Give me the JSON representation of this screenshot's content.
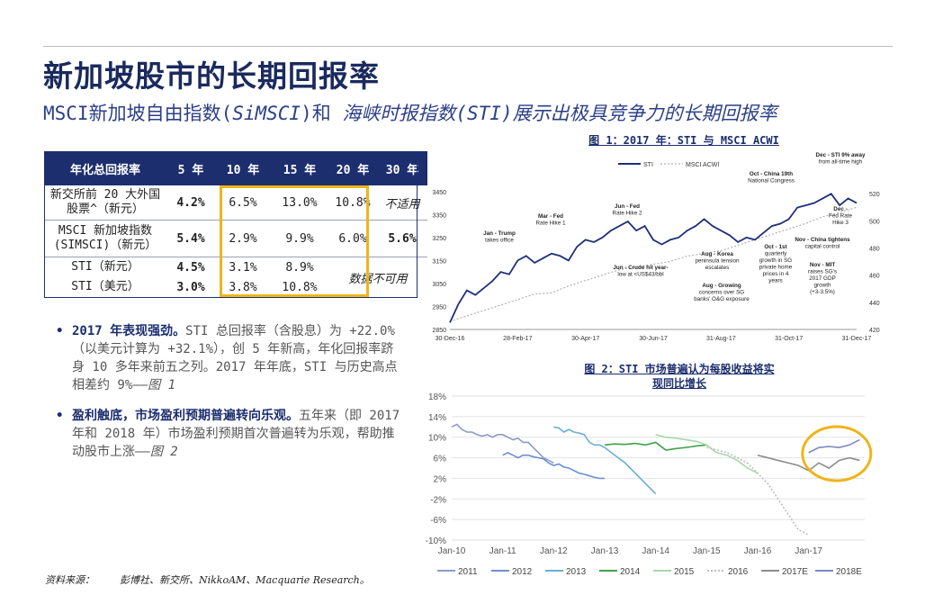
{
  "page": {
    "title": "新加坡股市的长期回报率",
    "subtitle_parts": [
      "MSCI新加坡自由指数(",
      "SiMSCI",
      ")和 ",
      "海峡时报指数(STI)展示出极具竞争力的长期回报率"
    ]
  },
  "table": {
    "headers": [
      "年化总回报率",
      "5 年",
      "10 年",
      "15 年",
      "20 年",
      "30 年"
    ],
    "rows": [
      {
        "label": "新交所前 20 大外国股票^（新元）",
        "label_lines": [
          "新交所前 20 大外国",
          "股票^（新元）"
        ],
        "values": [
          "4.2%",
          "6.5%",
          "13.0%",
          "10.8%",
          "不适用"
        ]
      },
      {
        "label": "MSCI 新加坡指数 (SIMSCI)（新元）",
        "label_lines": [
          "MSCI 新加坡指数",
          "(SIMSCI)（新元）"
        ],
        "values": [
          "5.4%",
          "2.9%",
          "9.9%",
          "6.0%",
          "5.6%"
        ]
      },
      {
        "label": "STI（新元）",
        "values": [
          "4.5%",
          "3.1%",
          "8.9%"
        ]
      },
      {
        "label": "STI（美元）",
        "values": [
          "3.0%",
          "3.8%",
          "10.8%"
        ]
      }
    ],
    "na_note": "数据不可用"
  },
  "bullets": [
    {
      "lead": "2017 年表现强劲。",
      "text": "STI 总回报率（含股息）为 +22.0%（以美元计算为 +32.1%），创 5 年新高，年化回报率跻身 10 多年来前五之列。2017 年年底，STI 与历史高点相差约 9%——",
      "ref": "图 1"
    },
    {
      "lead": "盈利触底，市场盈利预期普遍转向乐观。",
      "text": "五年来（即 2017 年和 2018 年）市场盈利预期首次普遍转为乐观，帮助推动股市上涨——",
      "ref": "图 2"
    }
  ],
  "source": {
    "label": "资料来源：",
    "text": "彭博社、新交所、NikkoAM、Macquarie Research。"
  },
  "colors": {
    "navy": "#1c2e6e",
    "gold": "#f0b419",
    "sti_line": "#1f2f7a",
    "acwi_line": "#b0b0b0"
  },
  "chart_data": [
    {
      "type": "line",
      "title": "图 1：2017 年：STI 与 MSCI ACWI",
      "legend": [
        "STI",
        "MSCI ACWI"
      ],
      "x_ticks": [
        "30-Dec-16",
        "28-Feb-17",
        "30-Apr-17",
        "30-Jun-17",
        "31-Aug-17",
        "31-Oct-17",
        "31-Dec-17"
      ],
      "ylim_left": [
        2850,
        3500
      ],
      "yticks_left": [
        2850,
        2950,
        3050,
        3150,
        3250,
        3350,
        3450
      ],
      "ylim_right": [
        420,
        530
      ],
      "yticks_right": [
        420,
        440,
        460,
        480,
        500,
        520
      ],
      "series": [
        {
          "name": "STI",
          "axis": "left",
          "x_month": [
            0,
            0.25,
            0.5,
            0.75,
            1,
            1.25,
            1.5,
            1.75,
            2,
            2.25,
            2.5,
            2.75,
            3,
            3.25,
            3.5,
            3.75,
            4,
            4.25,
            4.5,
            4.75,
            5,
            5.25,
            5.5,
            5.75,
            6,
            6.25,
            6.5,
            6.75,
            7,
            7.25,
            7.5,
            7.75,
            8,
            8.25,
            8.5,
            8.75,
            9,
            9.25,
            9.5,
            9.75,
            10,
            10.25,
            10.5,
            10.75,
            11,
            11.25,
            11.5,
            11.75,
            12
          ],
          "values": [
            2880,
            2960,
            3020,
            3000,
            3030,
            3060,
            3100,
            3090,
            3150,
            3170,
            3140,
            3160,
            3180,
            3170,
            3150,
            3210,
            3240,
            3230,
            3250,
            3280,
            3300,
            3320,
            3280,
            3300,
            3240,
            3220,
            3240,
            3250,
            3280,
            3300,
            3330,
            3300,
            3280,
            3260,
            3230,
            3250,
            3240,
            3270,
            3300,
            3310,
            3330,
            3380,
            3390,
            3400,
            3420,
            3440,
            3390,
            3420,
            3400
          ]
        },
        {
          "name": "MSCI ACWI",
          "axis": "right",
          "x_month": [
            0,
            0.5,
            1,
            1.5,
            2,
            2.5,
            3,
            3.5,
            4,
            4.5,
            5,
            5.5,
            6,
            6.5,
            7,
            7.5,
            8,
            8.5,
            9,
            9.5,
            10,
            10.5,
            11,
            11.5,
            12
          ],
          "values": [
            426,
            430,
            434,
            438,
            442,
            446,
            447,
            452,
            456,
            460,
            464,
            466,
            468,
            470,
            474,
            476,
            478,
            482,
            486,
            490,
            494,
            498,
            503,
            506,
            510
          ]
        }
      ],
      "annotations": [
        {
          "text": "Jan - Trump takes office",
          "lines": [
            "Jan - Trump",
            "takes office"
          ]
        },
        {
          "text": "Mar - Fed Rate Hike 1",
          "lines": [
            "Mar - Fed",
            "Rate Hike 1"
          ]
        },
        {
          "text": "Jun - Fed Rate Hike 2",
          "lines": [
            "Jun - Fed",
            "Rate Hike 2"
          ]
        },
        {
          "text": "Jun - Crude hit year-low at <US$43/bbl",
          "lines": [
            "Jun - Crude hit year-",
            "low at <US$43/bbl"
          ]
        },
        {
          "text": "Aug - Korea peninsula tension escalates",
          "lines": [
            "Aug - Korea",
            "peninsula tension",
            "escalates"
          ]
        },
        {
          "text": "Aug - Growing concerns over SG banks' O&G exposure",
          "lines": [
            "Aug - Growing",
            "concerns over SG",
            "banks' O&G exposure"
          ]
        },
        {
          "text": "Oct - China 19th National Congress",
          "lines": [
            "Oct - China 19th",
            "National Congress"
          ]
        },
        {
          "text": "Oct - 1st quarterly growth in SG private home prices in 4 years",
          "lines": [
            "Oct - 1st",
            "quarterly",
            "growth in SG",
            "private home",
            "prices in 4",
            "years"
          ]
        },
        {
          "text": "Nov - China tightens capital control",
          "lines": [
            "Nov - China tightens",
            "capital control"
          ]
        },
        {
          "text": "Nov - MIT raises SG's 2017 GDP growth (+3-3.5%)",
          "lines": [
            "Nov - MIT",
            "raises SG's",
            "2017 GDP",
            "growth",
            "(+3-3.5%)"
          ]
        },
        {
          "text": "Dec - STI 9% away from all-time high",
          "lines": [
            "Dec - STI 9% away",
            "from all-time high"
          ]
        },
        {
          "text": "Dec - Fed Rate Hike 3",
          "lines": [
            "Dec -",
            "Fed Rate",
            "Hike 3"
          ]
        }
      ]
    },
    {
      "type": "line",
      "title": "图 2：STI 市场普遍认为每股收益将实现同比增长",
      "title_lines": [
        "图 2：STI 市场普遍认为每股收益将实",
        "现同比增长"
      ],
      "x_ticks": [
        "Jan-10",
        "Jan-11",
        "Jan-12",
        "Jan-13",
        "Jan-14",
        "Jan-15",
        "Jan-16",
        "Jan-17"
      ],
      "ylim": [
        -10,
        18
      ],
      "yticks": [
        "-10%",
        "-6%",
        "-2%",
        "2%",
        "6%",
        "10%",
        "14%",
        "18%"
      ],
      "series": [
        {
          "name": "2011",
          "x_year": [
            0,
            0.1,
            0.2,
            0.3,
            0.4,
            0.5,
            0.6,
            0.7,
            0.8,
            0.9,
            1.0,
            1.1,
            1.2,
            1.3,
            1.4,
            1.5,
            1.6,
            1.7,
            1.8,
            1.9,
            2.0
          ],
          "values": [
            12,
            12.5,
            11.5,
            11,
            11,
            10.5,
            10.2,
            10.5,
            10,
            10.5,
            10.5,
            10,
            9.5,
            9.8,
            9,
            9,
            8,
            7,
            6,
            5.5,
            5
          ],
          "color": "#8a9bc9",
          "dash": false
        },
        {
          "name": "2012",
          "x_year": [
            1.0,
            1.1,
            1.2,
            1.3,
            1.4,
            1.5,
            1.6,
            1.7,
            1.8,
            1.9,
            2.0,
            2.1,
            2.2,
            2.3,
            2.4,
            2.5,
            2.6,
            2.7,
            2.8,
            2.9,
            3.0
          ],
          "values": [
            6.5,
            7,
            6.5,
            6,
            6.5,
            6.5,
            6.2,
            6,
            5.8,
            5,
            4.5,
            4.8,
            4.2,
            4,
            3.5,
            3,
            2.8,
            2.5,
            2.2,
            2,
            2
          ],
          "color": "#6f8fcf",
          "dash": false
        },
        {
          "name": "2013",
          "x_year": [
            2.0,
            2.1,
            2.2,
            2.3,
            2.4,
            2.5,
            2.6,
            2.7,
            2.8,
            2.9,
            3.0,
            3.2,
            3.4,
            3.6,
            3.8,
            4.0
          ],
          "values": [
            12,
            11.8,
            11,
            11.5,
            11,
            10.8,
            10.5,
            9,
            8.5,
            8.5,
            8,
            6.5,
            5,
            3,
            1,
            -1
          ],
          "color": "#6baed6",
          "dash": false
        },
        {
          "name": "2014",
          "x_year": [
            3.0,
            3.2,
            3.4,
            3.6,
            3.8,
            4.0,
            4.2,
            4.4,
            4.6,
            4.8,
            5.0
          ],
          "values": [
            8.5,
            8.7,
            8.6,
            8.8,
            8.5,
            9.0,
            7.5,
            7.8,
            8.0,
            8.3,
            8.5
          ],
          "color": "#41a048",
          "dash": false
        },
        {
          "name": "2015",
          "x_year": [
            4.0,
            4.2,
            4.4,
            4.6,
            4.8,
            5.0,
            5.2,
            5.4,
            5.6,
            5.8,
            6.0
          ],
          "values": [
            10.5,
            10,
            9.8,
            9.5,
            9.2,
            8.5,
            7.0,
            6.5,
            5.5,
            4.0,
            3.0
          ],
          "color": "#a6d9a3",
          "dash": false
        },
        {
          "name": "2016",
          "x_year": [
            5.0,
            5.2,
            5.4,
            5.6,
            5.8,
            6.0,
            6.2,
            6.4,
            6.6,
            6.8,
            7.0
          ],
          "values": [
            8,
            7.5,
            7,
            6,
            5,
            3,
            1,
            -2,
            -5,
            -8,
            -9
          ],
          "color": "#bdbdbd",
          "dash": true
        },
        {
          "name": "2017E",
          "x_year": [
            6.0,
            6.2,
            6.4,
            6.6,
            6.8,
            7.0,
            7.2,
            7.4,
            7.6,
            7.8,
            8.0
          ],
          "values": [
            6.5,
            6,
            5.5,
            5,
            4.5,
            3.5,
            5,
            4,
            5.5,
            6,
            5.5
          ],
          "color": "#8c8c8c",
          "dash": false
        },
        {
          "name": "2018E",
          "x_year": [
            7.0,
            7.2,
            7.4,
            7.6,
            7.8,
            8.0
          ],
          "values": [
            7.0,
            8.0,
            8.2,
            8.0,
            8.5,
            9.5
          ],
          "color": "#7b88c2",
          "dash": false
        }
      ]
    }
  ]
}
